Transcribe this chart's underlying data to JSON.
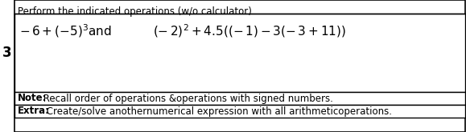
{
  "title": "Perform the indicated operations (w/o calculator).",
  "expr1": "$-6+(-5)^3$and",
  "expr2": "$(- 2)^2+4.5((-1)-3(-3+11))$",
  "note_bold": "Note:",
  "note_text": " Recall order of operations &operations with signed numbers.",
  "extra_bold": "Extra:",
  "extra_text": " Create/solve anothernumerical expression with all arithmeticoperations.",
  "label_3": "3",
  "bg_color": "#ffffff",
  "border_color": "#000000",
  "font_color": "#000000",
  "font_size_title": 8.5,
  "font_size_main": 11.0,
  "font_size_note": 8.5
}
